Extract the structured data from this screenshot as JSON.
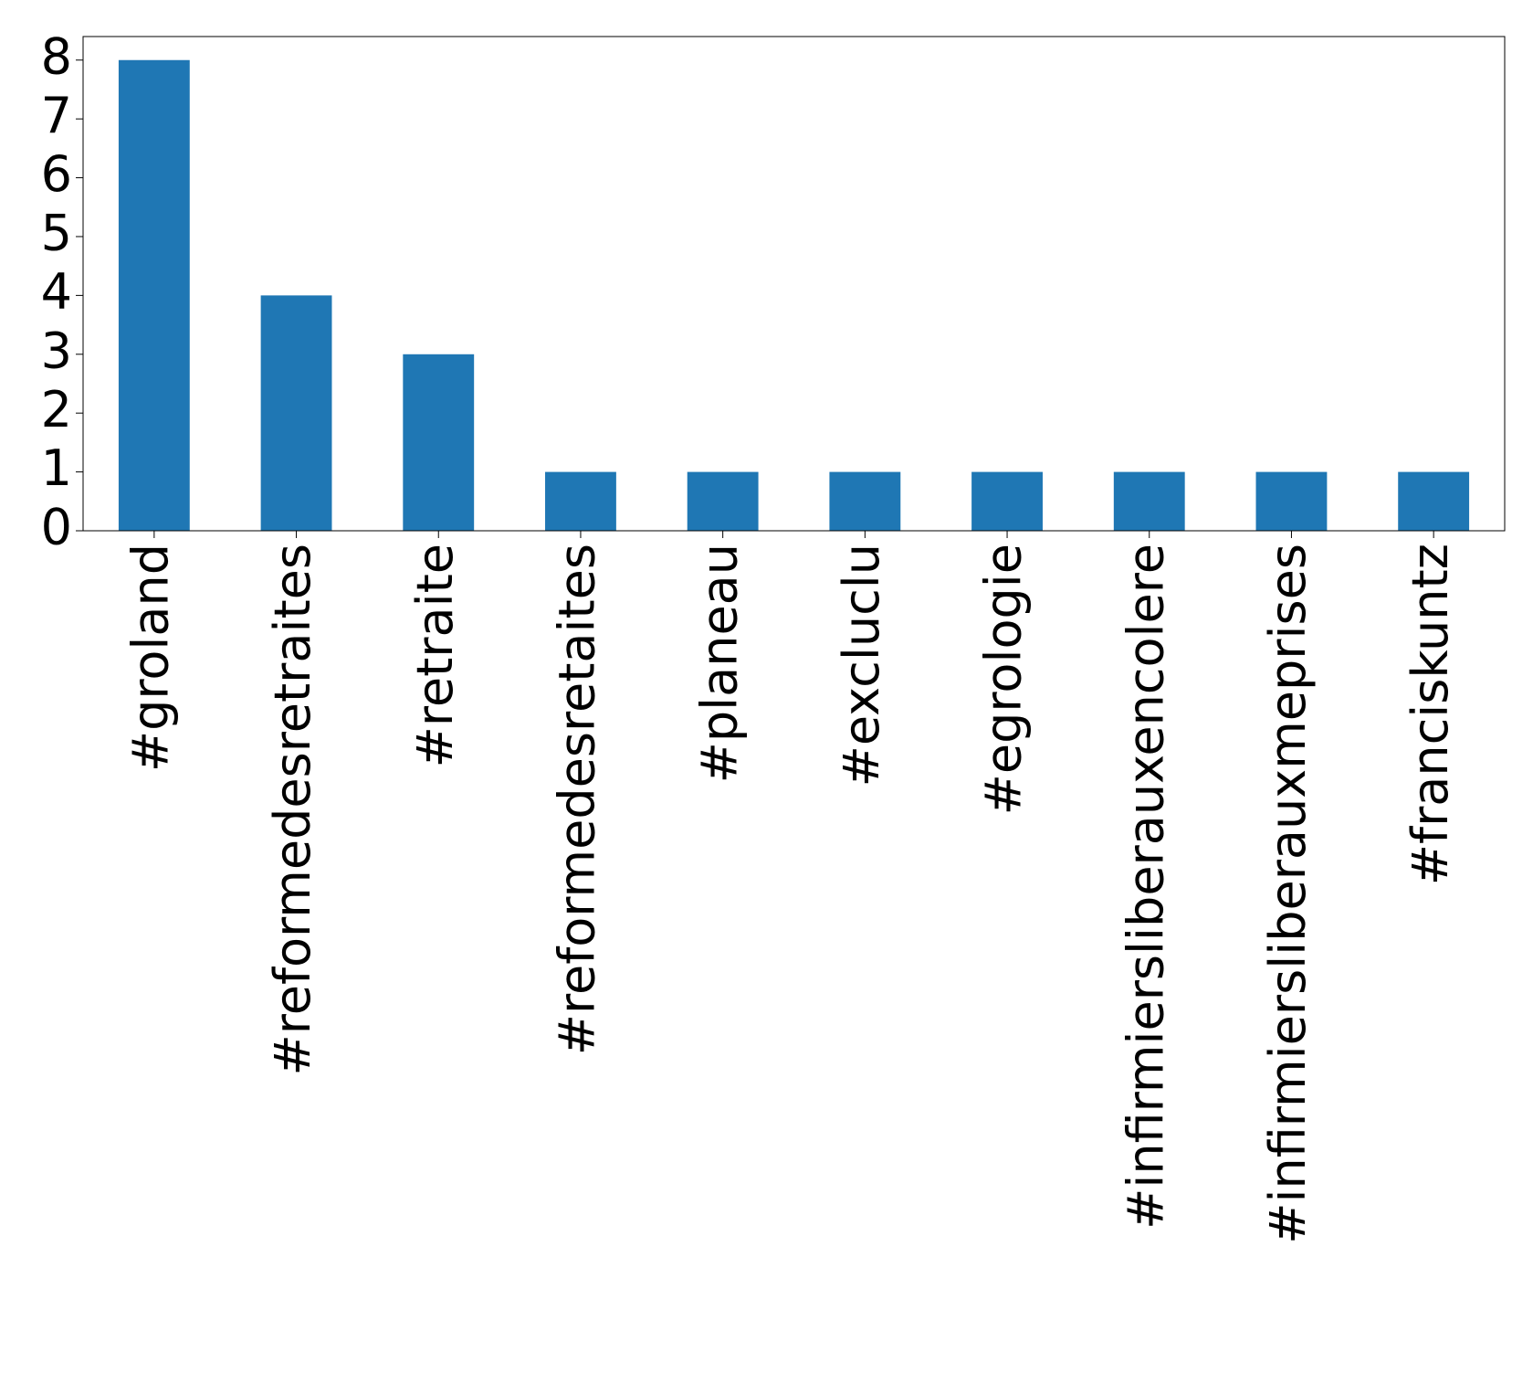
{
  "chart_data": {
    "type": "bar",
    "categories": [
      "#groland",
      "#reformedesretraites",
      "#retraite",
      "#reformedesretaites",
      "#planeau",
      "#excluclu",
      "#egrologie",
      "#infirmiersliberauxencolere",
      "#infirmiersliberauxmeprises",
      "#franciskuntz"
    ],
    "values": [
      8,
      4,
      3,
      1,
      1,
      1,
      1,
      1,
      1,
      1
    ],
    "color": "#1f77b4",
    "ylim": [
      0,
      8.4
    ],
    "yticks": [
      0,
      1,
      2,
      3,
      4,
      5,
      6,
      7,
      8
    ],
    "grid": false
  }
}
